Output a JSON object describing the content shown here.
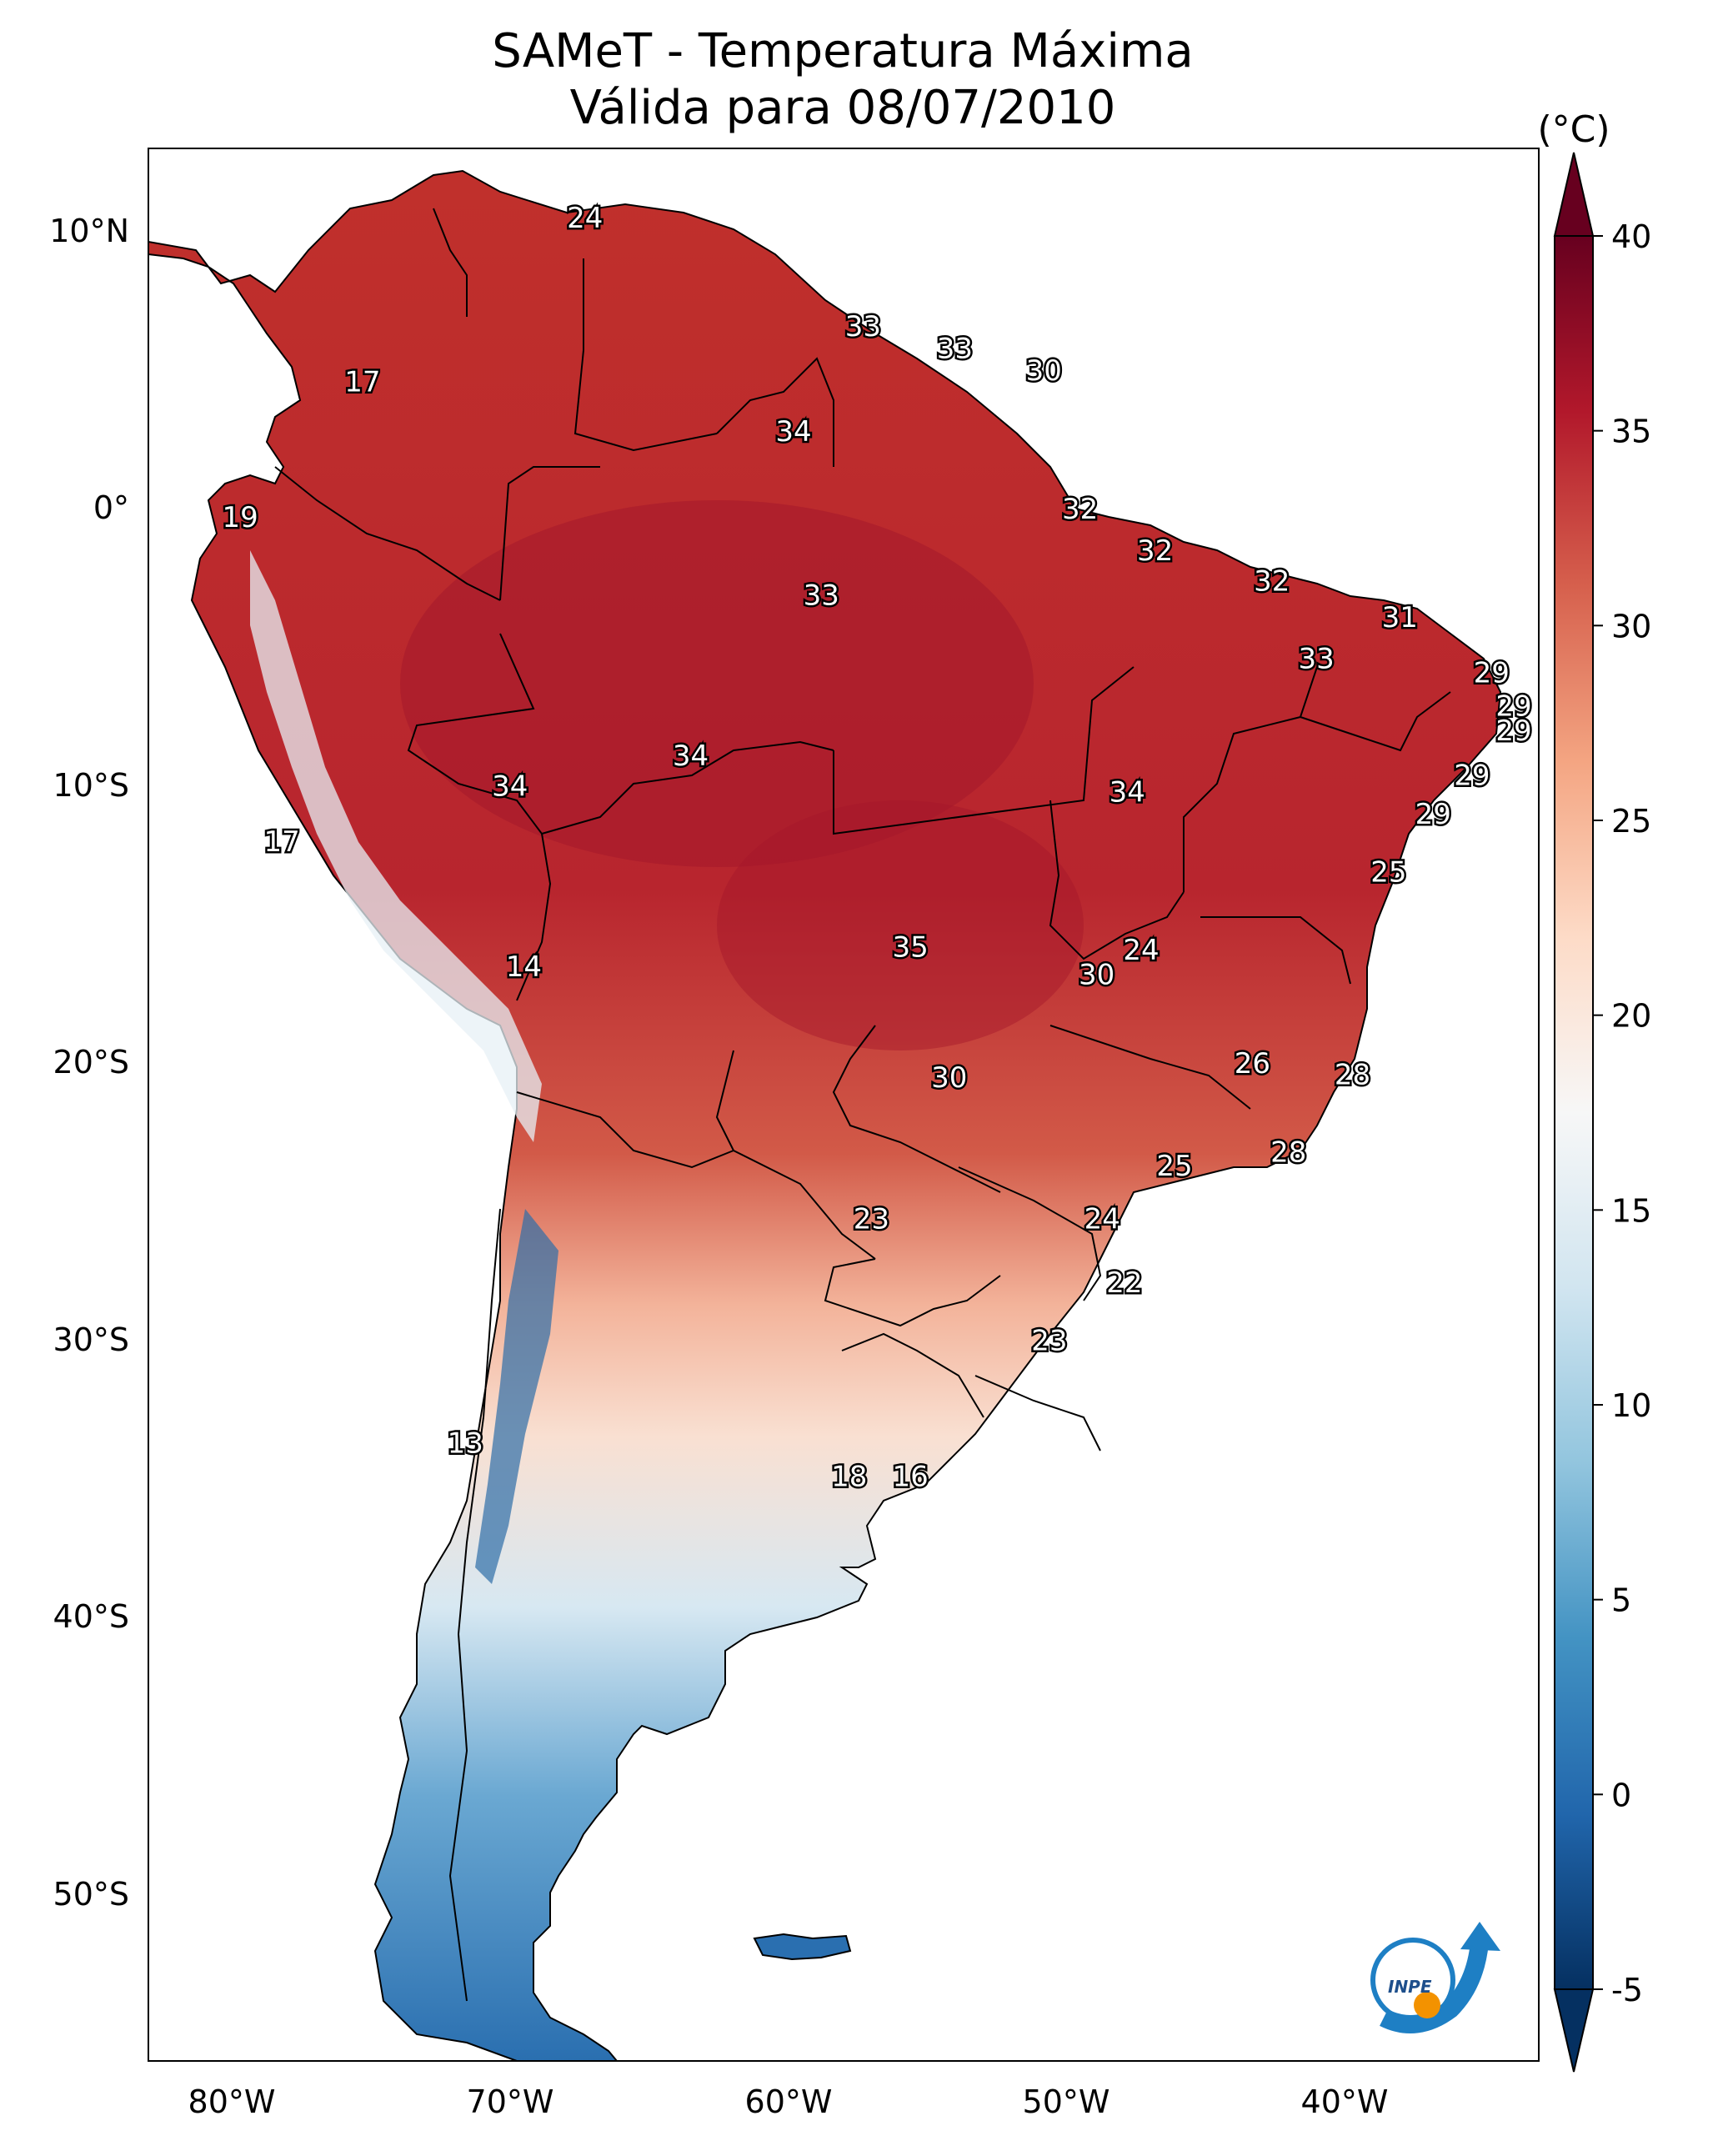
{
  "title": {
    "line1": "SAMeT - Temperatura Máxima",
    "line2": "Válida para 08/07/2010"
  },
  "map": {
    "lon_range": [
      -83,
      -33
    ],
    "lat_range": [
      -56,
      13
    ],
    "lat_ticks": [
      {
        "value": 10,
        "label": "10°N"
      },
      {
        "value": 0,
        "label": "0°"
      },
      {
        "value": -10,
        "label": "10°S"
      },
      {
        "value": -20,
        "label": "20°S"
      },
      {
        "value": -30,
        "label": "30°S"
      },
      {
        "value": -40,
        "label": "40°S"
      },
      {
        "value": -50,
        "label": "50°S"
      }
    ],
    "lon_ticks": [
      {
        "value": -80,
        "label": "80°W"
      },
      {
        "value": -70,
        "label": "70°W"
      },
      {
        "value": -60,
        "label": "60°W"
      },
      {
        "value": -50,
        "label": "50°W"
      },
      {
        "value": -40,
        "label": "40°W"
      }
    ],
    "temperature_labels": [
      {
        "text": "24",
        "lon": -67.3,
        "lat": 10.5
      },
      {
        "text": "17",
        "lon": -75.3,
        "lat": 4.6
      },
      {
        "text": "33",
        "lon": -57.3,
        "lat": 6.6
      },
      {
        "text": "33",
        "lon": -54.0,
        "lat": 5.8
      },
      {
        "text": "30",
        "lon": -50.8,
        "lat": 5.0
      },
      {
        "text": "34",
        "lon": -59.8,
        "lat": 2.8
      },
      {
        "text": "19",
        "lon": -79.7,
        "lat": -0.3
      },
      {
        "text": "32",
        "lon": -49.5,
        "lat": 0.0
      },
      {
        "text": "32",
        "lon": -46.8,
        "lat": -1.5
      },
      {
        "text": "33",
        "lon": -58.8,
        "lat": -3.1
      },
      {
        "text": "32",
        "lon": -42.6,
        "lat": -2.6
      },
      {
        "text": "31",
        "lon": -38.0,
        "lat": -3.9
      },
      {
        "text": "33",
        "lon": -41.0,
        "lat": -5.4
      },
      {
        "text": "29",
        "lon": -34.7,
        "lat": -5.9
      },
      {
        "text": "29",
        "lon": -33.9,
        "lat": -7.1
      },
      {
        "text": "29",
        "lon": -33.9,
        "lat": -8.0
      },
      {
        "text": "34",
        "lon": -63.5,
        "lat": -8.9
      },
      {
        "text": "34",
        "lon": -70.0,
        "lat": -10.0
      },
      {
        "text": "29",
        "lon": -35.4,
        "lat": -9.6
      },
      {
        "text": "34",
        "lon": -47.8,
        "lat": -10.2
      },
      {
        "text": "29",
        "lon": -36.8,
        "lat": -11.0
      },
      {
        "text": "17",
        "lon": -78.2,
        "lat": -12.0
      },
      {
        "text": "25",
        "lon": -38.4,
        "lat": -13.1
      },
      {
        "text": "35",
        "lon": -55.6,
        "lat": -15.8
      },
      {
        "text": "24",
        "lon": -47.3,
        "lat": -15.9
      },
      {
        "text": "14",
        "lon": -69.5,
        "lat": -16.5
      },
      {
        "text": "30",
        "lon": -48.9,
        "lat": -16.8
      },
      {
        "text": "26",
        "lon": -43.3,
        "lat": -20.0
      },
      {
        "text": "28",
        "lon": -39.7,
        "lat": -20.4
      },
      {
        "text": "30",
        "lon": -54.2,
        "lat": -20.5
      },
      {
        "text": "28",
        "lon": -42.0,
        "lat": -23.2
      },
      {
        "text": "25",
        "lon": -46.1,
        "lat": -23.7
      },
      {
        "text": "23",
        "lon": -57.0,
        "lat": -25.6
      },
      {
        "text": "24",
        "lon": -48.7,
        "lat": -25.6
      },
      {
        "text": "22",
        "lon": -47.9,
        "lat": -27.9
      },
      {
        "text": "23",
        "lon": -50.6,
        "lat": -30.0
      },
      {
        "text": "13",
        "lon": -71.6,
        "lat": -33.7
      },
      {
        "text": "18",
        "lon": -57.8,
        "lat": -34.9
      },
      {
        "text": "16",
        "lon": -55.6,
        "lat": -34.9
      }
    ]
  },
  "colorbar": {
    "unit": "(°C)",
    "min": -5,
    "max": 40,
    "ticks": [
      {
        "value": 40,
        "label": "40"
      },
      {
        "value": 35,
        "label": "35"
      },
      {
        "value": 30,
        "label": "30"
      },
      {
        "value": 25,
        "label": "25"
      },
      {
        "value": 20,
        "label": "20"
      },
      {
        "value": 15,
        "label": "15"
      },
      {
        "value": 10,
        "label": "10"
      },
      {
        "value": 5,
        "label": "5"
      },
      {
        "value": 0,
        "label": "0"
      },
      {
        "value": -5,
        "label": "-5"
      }
    ],
    "palette": [
      "#053061",
      "#2166ac",
      "#4393c3",
      "#92c5de",
      "#d1e5f0",
      "#f7f7f7",
      "#fddbc7",
      "#f4a582",
      "#d6604d",
      "#b2182b",
      "#67001f"
    ]
  },
  "logo": {
    "text": "INPE",
    "colors": {
      "blue": "#1e7fc4",
      "orange": "#f39200"
    }
  }
}
